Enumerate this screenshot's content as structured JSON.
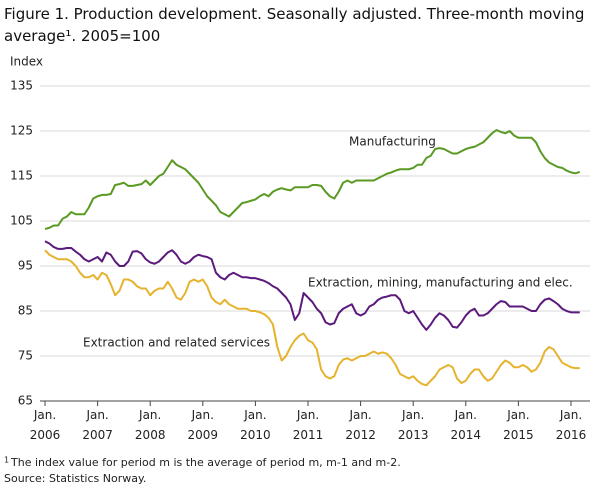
{
  "chart_data": {
    "type": "line",
    "title": "Figure 1. Production development. Seasonally adjusted. Three-month moving average¹. 2005=100",
    "y_label": "Index",
    "x": [
      "2006-01",
      "2006-02",
      "2006-03",
      "2006-04",
      "2006-05",
      "2006-06",
      "2006-07",
      "2006-08",
      "2006-09",
      "2006-10",
      "2006-11",
      "2006-12",
      "2007-01",
      "2007-02",
      "2007-03",
      "2007-04",
      "2007-05",
      "2007-06",
      "2007-07",
      "2007-08",
      "2007-09",
      "2007-10",
      "2007-11",
      "2007-12",
      "2008-01",
      "2008-02",
      "2008-03",
      "2008-04",
      "2008-05",
      "2008-06",
      "2008-07",
      "2008-08",
      "2008-09",
      "2008-10",
      "2008-11",
      "2008-12",
      "2009-01",
      "2009-02",
      "2009-03",
      "2009-04",
      "2009-05",
      "2009-06",
      "2009-07",
      "2009-08",
      "2009-09",
      "2009-10",
      "2009-11",
      "2009-12",
      "2010-01",
      "2010-02",
      "2010-03",
      "2010-04",
      "2010-05",
      "2010-06",
      "2010-07",
      "2010-08",
      "2010-09",
      "2010-10",
      "2010-11",
      "2010-12",
      "2011-01",
      "2011-02",
      "2011-03",
      "2011-04",
      "2011-05",
      "2011-06",
      "2011-07",
      "2011-08",
      "2011-09",
      "2011-10",
      "2011-11",
      "2011-12",
      "2012-01",
      "2012-02",
      "2012-03",
      "2012-04",
      "2012-05",
      "2012-06",
      "2012-07",
      "2012-08",
      "2012-09",
      "2012-10",
      "2012-11",
      "2012-12",
      "2013-01",
      "2013-02",
      "2013-03",
      "2013-04",
      "2013-05",
      "2013-06",
      "2013-07",
      "2013-08",
      "2013-09",
      "2013-10",
      "2013-11",
      "2013-12",
      "2014-01",
      "2014-02",
      "2014-03",
      "2014-04",
      "2014-05",
      "2014-06",
      "2014-07",
      "2014-08",
      "2014-09",
      "2014-10",
      "2014-11",
      "2014-12",
      "2015-01",
      "2015-02",
      "2015-03",
      "2015-04",
      "2015-05",
      "2015-06",
      "2015-07",
      "2015-08",
      "2015-09",
      "2015-10",
      "2015-11",
      "2015-12",
      "2016-01",
      "2016-02",
      "2016-03"
    ],
    "xticks": [
      {
        "value": "2006-01",
        "label": "Jan. 2006"
      },
      {
        "value": "2007-01",
        "label": "Jan. 2007"
      },
      {
        "value": "2008-01",
        "label": "Jan. 2008"
      },
      {
        "value": "2009-01",
        "label": "Jan. 2009"
      },
      {
        "value": "2010-01",
        "label": "Jan. 2010"
      },
      {
        "value": "2011-01",
        "label": "Jan. 2011"
      },
      {
        "value": "2012-01",
        "label": "Jan. 2012"
      },
      {
        "value": "2013-01",
        "label": "Jan. 2013"
      },
      {
        "value": "2014-01",
        "label": "Jan. 2014"
      },
      {
        "value": "2015-01",
        "label": "Jan. 2015"
      },
      {
        "value": "2016-01",
        "label": "Jan. 2016"
      }
    ],
    "ylim": [
      65,
      135
    ],
    "yticks": [
      65,
      75,
      85,
      95,
      105,
      115,
      125,
      135
    ],
    "grid": true,
    "series": [
      {
        "name": "Manufacturing",
        "color": "#5a9a23",
        "values": [
          103.2,
          103.5,
          104,
          104,
          105.5,
          106,
          107,
          106.5,
          106.5,
          106.5,
          108,
          110,
          110.5,
          110.8,
          110.8,
          111,
          113,
          113.2,
          113.5,
          112.8,
          112.8,
          113,
          113.2,
          114,
          113,
          114,
          115,
          115.5,
          117,
          118.5,
          117.5,
          117,
          116.5,
          115.5,
          114.5,
          113.5,
          112,
          110.5,
          109.5,
          108.5,
          107,
          106.5,
          106,
          107,
          108,
          109,
          109.2,
          109.5,
          109.8,
          110.5,
          111,
          110.5,
          111.5,
          112,
          112.3,
          112,
          111.8,
          112.5,
          112.5,
          112.5,
          112.5,
          113,
          113,
          112.8,
          111.5,
          110.5,
          110,
          111.5,
          113.5,
          114,
          113.5,
          114,
          114,
          114,
          114,
          114,
          114.5,
          115,
          115.5,
          115.8,
          116.2,
          116.5,
          116.5,
          116.5,
          116.8,
          117.5,
          117.5,
          119,
          119.5,
          121,
          121.2,
          121,
          120.5,
          120,
          120,
          120.5,
          121,
          121.3,
          121.5,
          122,
          122.5,
          123.5,
          124.5,
          125.2,
          124.8,
          124.5,
          125,
          124,
          123.5,
          123.5,
          123.5,
          123.5,
          122.5,
          120.5,
          119,
          118,
          117.5,
          117,
          116.8,
          116.2,
          115.8,
          115.6,
          115.9
        ]
      },
      {
        "name": "Extraction, mining, manufacturing and elec.",
        "color": "#5c1a7c",
        "values": [
          100.5,
          100,
          99.2,
          98.8,
          98.8,
          99,
          99,
          98.2,
          97.5,
          96.5,
          96,
          96.5,
          97,
          96,
          98,
          97.5,
          96,
          95,
          95,
          96,
          98.2,
          98.3,
          97.8,
          96.5,
          95.8,
          95.5,
          96,
          97,
          98,
          98.5,
          97.5,
          96,
          95.5,
          96,
          97,
          97.5,
          97.2,
          97,
          96.5,
          93.5,
          92.5,
          92,
          93,
          93.5,
          93,
          92.5,
          92.5,
          92.3,
          92.3,
          92,
          91.7,
          91.2,
          90.5,
          90,
          89,
          88,
          86.5,
          83,
          84.5,
          89,
          88,
          87,
          85.5,
          84.5,
          82.5,
          82,
          82.3,
          84.5,
          85.5,
          86,
          86.5,
          84.5,
          84,
          84.5,
          86,
          86.5,
          87.5,
          88,
          88.2,
          88.5,
          88.5,
          87.5,
          85,
          84.5,
          85,
          83.5,
          82,
          80.8,
          82,
          83.5,
          84.5,
          84,
          83,
          81.5,
          81.3,
          82.5,
          84,
          85,
          85.5,
          84,
          84,
          84.5,
          85.5,
          86.5,
          87.2,
          87,
          86,
          86,
          86,
          86,
          85.5,
          85,
          85,
          86.5,
          87.5,
          87.8,
          87.2,
          86.5,
          85.5,
          85,
          84.7,
          84.7,
          84.7
        ]
      },
      {
        "name": "Extraction and related services",
        "color": "#e6b32e",
        "values": [
          98.5,
          97.5,
          97,
          96.5,
          96.5,
          96.5,
          96,
          95,
          93.5,
          92.5,
          92.5,
          93,
          92,
          93.5,
          93,
          91,
          88.5,
          89.5,
          92,
          92,
          91.5,
          90.5,
          90,
          90,
          88.5,
          89.5,
          90,
          90,
          91.5,
          90,
          88,
          87.5,
          89,
          91.5,
          92,
          91.5,
          92,
          90.5,
          88,
          87,
          86.5,
          87.5,
          86.5,
          86,
          85.5,
          85.5,
          85.5,
          85,
          85,
          84.7,
          84.3,
          83.5,
          82,
          77,
          74,
          75,
          77,
          78.5,
          79.5,
          80,
          78.5,
          78,
          76.5,
          72,
          70.5,
          70,
          70.5,
          73,
          74.2,
          74.5,
          74,
          74.5,
          75,
          75,
          75.5,
          76,
          75.5,
          75.8,
          75.5,
          74.5,
          73,
          71,
          70.5,
          70,
          70.5,
          69.5,
          68.8,
          68.5,
          69.5,
          70.5,
          72,
          72.5,
          73,
          72.5,
          70,
          69,
          69.5,
          71,
          72,
          72,
          70.5,
          69.5,
          70,
          71.5,
          73,
          74,
          73.5,
          72.5,
          72.5,
          73,
          72.5,
          71.5,
          72,
          73.5,
          76,
          77,
          76.5,
          75,
          73.5,
          73,
          72.5,
          72.3,
          72.3
        ]
      }
    ],
    "footnote": {
      "marker": "1",
      "text": "The index value for period m is the average of period m, m-1 and m-2."
    },
    "source": "Source: Statistics Norway."
  }
}
